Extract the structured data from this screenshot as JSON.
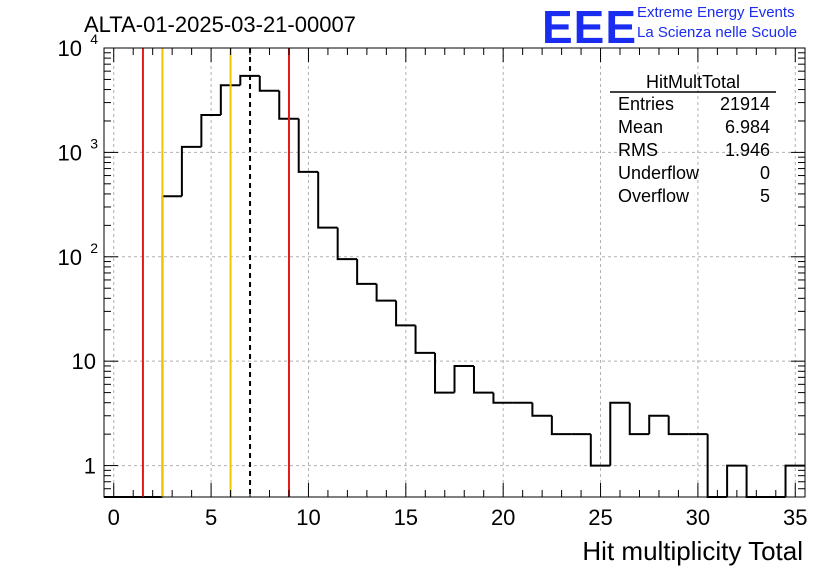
{
  "header": {
    "title": "ALTA-01-2025-03-21-00007",
    "logo_text": "EEE",
    "logo_line1": "Extreme Energy Events",
    "logo_line2": "La Scienza nelle Scuole"
  },
  "stats": {
    "name": "HitMultTotal",
    "rows": [
      {
        "label": "Entries",
        "value": "21914"
      },
      {
        "label": "Mean",
        "value": "6.984"
      },
      {
        "label": "RMS",
        "value": "1.946"
      },
      {
        "label": "Underflow",
        "value": "0"
      },
      {
        "label": "Overflow",
        "value": "5"
      }
    ]
  },
  "chart_data": {
    "type": "histogram",
    "xlabel": "Hit multiplicity Total",
    "ylabel": "",
    "xlim": [
      -0.5,
      35.5
    ],
    "ylim": [
      0.5,
      10000
    ],
    "yscale": "log",
    "grid": true,
    "bin_width": 1,
    "bin_centers": [
      0,
      1,
      2,
      3,
      4,
      5,
      6,
      7,
      8,
      9,
      10,
      11,
      12,
      13,
      14,
      15,
      16,
      17,
      18,
      19,
      20,
      21,
      22,
      23,
      24,
      25,
      26,
      27,
      28,
      29,
      30,
      31,
      32,
      33,
      34,
      35
    ],
    "counts": [
      0,
      0,
      0,
      380,
      1130,
      2280,
      4400,
      5400,
      3900,
      2100,
      650,
      190,
      95,
      55,
      38,
      22,
      12,
      5,
      9,
      5,
      4,
      4,
      3,
      2,
      2,
      1,
      4,
      2,
      3,
      2,
      2,
      0,
      1,
      0,
      0,
      1
    ],
    "x_ticks": [
      0,
      5,
      10,
      15,
      20,
      25,
      30,
      35
    ],
    "y_ticks": [
      {
        "value": 1,
        "label": "1"
      },
      {
        "value": 10,
        "label": "10"
      },
      {
        "value": 100,
        "label": "10",
        "exp": "2"
      },
      {
        "value": 1000,
        "label": "10",
        "exp": "3"
      },
      {
        "value": 10000,
        "label": "10",
        "exp": "4"
      }
    ],
    "vlines": [
      {
        "x": 1.5,
        "color": "#e31a1c",
        "style": "solid"
      },
      {
        "x": 2.5,
        "color": "#f2c500",
        "style": "solid"
      },
      {
        "x": 6.0,
        "color": "#f2c500",
        "style": "solid"
      },
      {
        "x": 7.0,
        "color": "#000000",
        "style": "dashed"
      },
      {
        "x": 9.0,
        "color": "#e31a1c",
        "style": "solid"
      }
    ]
  }
}
